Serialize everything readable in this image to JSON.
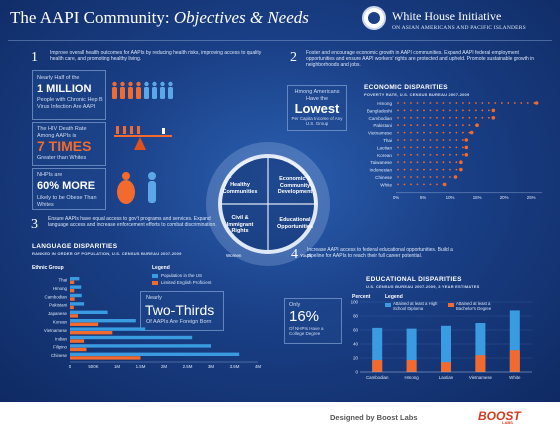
{
  "header": {
    "title": "The AAPI Community:",
    "subtitle": "Objectives & Needs",
    "initiative_title": "White House Initiative",
    "initiative_sub": "ON ASIAN AMERICANS AND PACIFIC ISLANDERS",
    "seal_icon": "seal-icon"
  },
  "s1": {
    "num": "1",
    "text": "Improve overall health outcomes for AAPIs by reducing health risks, improving access to quality health care, and promoting healthy living.",
    "stat1_top": "Nearly Half of the",
    "stat1_big": "1 MILLION",
    "stat1_bottom": "People with Chronic Hep B Virus Infection Are AAPI",
    "stat1_fraction": 0.5,
    "stat2_top": "The HIV Death Rate Among AAPIs is",
    "stat2_big": "7 TIMES",
    "stat2_bottom": "Greater than Whites",
    "stat3_top": "NHPIs are",
    "stat3_big": "60% MORE",
    "stat3_bottom": "Likely to be Obese Than Whites"
  },
  "s2": {
    "num": "2",
    "text": "Foster and encourage economic growth in AAPI communities. Expand AAPI federal employment opportunities and ensure AAPI workers' rights are protected and upheld. Promote sustainable growth in neighborhoods and jobs.",
    "callout_top": "Hmong Americans Have the",
    "callout_big": "Lowest",
    "callout_bottom": "Per Capita Income of Any U.S. Group"
  },
  "s3": {
    "num": "3",
    "text": "Ensure AAPIs have equal access to gov't programs and services. Expand language access and increase enforcement efforts to combat discrimination.",
    "callout_top": "Nearly",
    "callout_big": "Two-Thirds",
    "callout_bottom": "Of AAPIs Are Foreign Born"
  },
  "s4": {
    "num": "4",
    "text": "Increase AAPI access to federal educational opportunities. Build a pipeline for AAPIs to reach their full career potential.",
    "callout_big": "16%",
    "callout_top": "Only",
    "callout_bottom": "Of NHPIs Have a College Degree"
  },
  "circle": {
    "q1": "Healthy Communities",
    "q2": "Economic & Community Development",
    "q3": "Civil & Immigrant Rights",
    "q4": "Educational Opportunities",
    "arc1": "LGBTQ Communities",
    "arc2": "Native Hawaiians & Pacific Islanders",
    "arc3": "Youth",
    "arc4": "Women"
  },
  "chart_data": [
    {
      "type": "scatter",
      "title": "ECONOMIC DISPARITIES",
      "subtitle": "POVERTY RATE, U.S. CENSUS BUREAU 2007-2009",
      "categories": [
        "Hmong",
        "Bangladeshi",
        "Cambodian",
        "Pakistani",
        "Vietnamese",
        "Thai",
        "Laotian",
        "Korean",
        "Taiwanese",
        "Indonesian",
        "Chinese",
        "White"
      ],
      "values": [
        26,
        18,
        18,
        15,
        14,
        13,
        13,
        13,
        12,
        12,
        11,
        9
      ],
      "xticks": [
        "0%",
        "5%",
        "10%",
        "15%",
        "20%",
        "25%"
      ],
      "xlim": [
        0,
        27
      ]
    },
    {
      "type": "bar",
      "title": "LANGUAGE DISPARITIES",
      "subtitle": "RANKED IN ORDER OF POPULATION, U.S. CENSUS BUREAU 2007-2009",
      "ylabel": "Ethnic Group",
      "legend_title": "Legend",
      "categories": [
        "Thai",
        "Hmong",
        "Cambodian",
        "Pakistani",
        "Japanese",
        "Korean",
        "Vietnamese",
        "Indian",
        "Filipino",
        "Chinese"
      ],
      "series": [
        {
          "name": "Population in the US",
          "values": [
            200000,
            240000,
            250000,
            300000,
            800000,
            1400000,
            1600000,
            2600000,
            3000000,
            3600000
          ]
        },
        {
          "name": "Limited English Proficient",
          "values": [
            90000,
            90000,
            100000,
            80000,
            170000,
            600000,
            900000,
            300000,
            350000,
            1500000
          ]
        }
      ],
      "xticks": [
        "0",
        "500K",
        "1M",
        "1.5M",
        "2M",
        "2.5M",
        "3M",
        "3.5M",
        "4M"
      ],
      "xlim": [
        0,
        4000000
      ]
    },
    {
      "type": "bar",
      "title": "EDUCATIONAL DISPARITIES",
      "subtitle": "U.S. CENSUS BUREAU 2007-2009, 3 YEAR ESTIMATES",
      "ylabel": "Percent",
      "legend_title": "Legend",
      "categories": [
        "Cambodian",
        "Hmong",
        "Laotian",
        "Vietnamese",
        "White"
      ],
      "series": [
        {
          "name": "Attained at least a High School Diploma",
          "values": [
            63,
            62,
            66,
            70,
            88
          ]
        },
        {
          "name": "Attained at least a Bachelor's Degree",
          "values": [
            17,
            17,
            14,
            24,
            31
          ]
        }
      ],
      "yticks": [
        "0",
        "20",
        "40",
        "60",
        "80",
        "100"
      ],
      "ylim": [
        0,
        100
      ]
    }
  ],
  "colors": {
    "blue_bar": "#3a9be0",
    "orange": "#f26a2e",
    "orange_dark": "#e0521a"
  },
  "footer": {
    "credit": "Designed by Boost Labs",
    "brand": "BOOST",
    "brand_sub": "LABS"
  }
}
